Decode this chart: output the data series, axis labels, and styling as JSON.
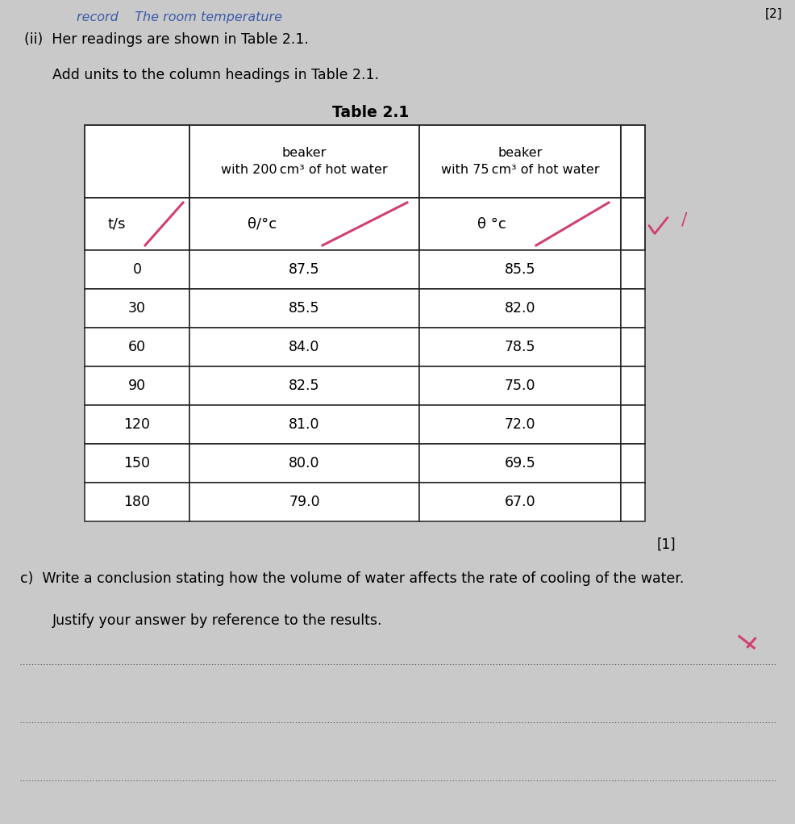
{
  "bg_color": "#c8c8c8",
  "top_text_handwritten": "record    The room temperature",
  "top_right_mark": "[2]",
  "line_ii": "(ii)  Her readings are shown in Table 2.1.",
  "line_add": "Add units to the column headings in Table 2.1.",
  "table_title": "Table 2.1",
  "header_col2": "beaker\nwith 200 cm³ of hot water",
  "header_col3": "beaker\nwith 75 cm³ of hot water",
  "subheader_col1": "t/s",
  "subheader_col2": "θ/°c",
  "subheader_col3": "θ °c",
  "time_values": [
    0,
    30,
    60,
    90,
    120,
    150,
    180
  ],
  "temp_200": [
    87.5,
    85.5,
    84.0,
    82.5,
    81.0,
    80.0,
    79.0
  ],
  "temp_75": [
    85.5,
    82.0,
    78.5,
    75.0,
    72.0,
    69.5,
    67.0
  ],
  "mark_1": "[1]",
  "part_c_line1": "c)  Write a conclusion stating how the volume of water affects the rate of cooling of the water.",
  "part_c_line2": "Justify your answer by reference to the results.",
  "mark_2": "[2]",
  "tick_color": "#d04070",
  "cross_color": "#d04070",
  "handwriting_color": "#3a5aaa",
  "page_bg": "#c9c9c9"
}
